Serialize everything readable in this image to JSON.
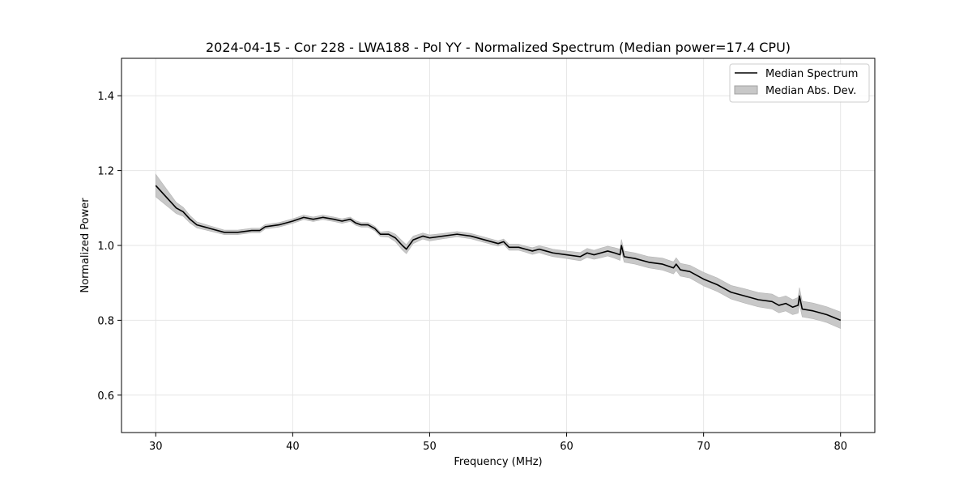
{
  "chart_data": {
    "type": "line",
    "title": "2024-04-15 - Cor 228 - LWA188 - Pol YY - Normalized Spectrum (Median power=17.4 CPU)",
    "xlabel": "Frequency (MHz)",
    "ylabel": "Normalized Power",
    "xlim": [
      27.5,
      82.5
    ],
    "ylim": [
      0.5,
      1.5
    ],
    "xticks": [
      30,
      40,
      50,
      60,
      70,
      80
    ],
    "yticks": [
      0.6,
      0.8,
      1.0,
      1.2,
      1.4
    ],
    "xtick_labels": [
      "30",
      "40",
      "50",
      "60",
      "70",
      "80"
    ],
    "ytick_labels": [
      "0.6",
      "0.8",
      "1.0",
      "1.2",
      "1.4"
    ],
    "grid": true,
    "legend_position": "top-right",
    "legend": [
      "Median Spectrum",
      "Median Abs. Dev."
    ],
    "series": [
      {
        "name": "Median Spectrum",
        "color": "#000000",
        "x": [
          30.0,
          30.5,
          31.0,
          31.5,
          32.0,
          32.5,
          33.0,
          34.0,
          35.0,
          36.0,
          37.0,
          37.6,
          38.0,
          39.0,
          40.0,
          40.8,
          41.5,
          42.2,
          43.0,
          43.6,
          44.2,
          44.6,
          45.0,
          45.5,
          46.0,
          46.4,
          47.0,
          47.5,
          48.0,
          48.3,
          48.8,
          49.5,
          50.0,
          51.0,
          52.0,
          53.0,
          54.0,
          55.0,
          55.4,
          55.8,
          56.5,
          57.0,
          57.5,
          58.0,
          58.5,
          59.0,
          60.0,
          61.0,
          61.5,
          62.0,
          62.5,
          63.0,
          63.5,
          63.9,
          64.0,
          64.2,
          65.0,
          66.0,
          67.0,
          67.8,
          68.0,
          68.3,
          69.0,
          70.0,
          71.0,
          72.0,
          73.0,
          74.0,
          75.0,
          75.5,
          76.0,
          76.5,
          76.9,
          77.0,
          77.2,
          78.0,
          79.0,
          80.0
        ],
        "y": [
          1.16,
          1.14,
          1.12,
          1.1,
          1.09,
          1.07,
          1.055,
          1.045,
          1.035,
          1.035,
          1.04,
          1.04,
          1.05,
          1.055,
          1.065,
          1.075,
          1.07,
          1.075,
          1.07,
          1.065,
          1.07,
          1.06,
          1.055,
          1.055,
          1.045,
          1.03,
          1.03,
          1.02,
          1.0,
          0.99,
          1.015,
          1.025,
          1.02,
          1.025,
          1.03,
          1.025,
          1.015,
          1.005,
          1.01,
          0.995,
          0.995,
          0.99,
          0.985,
          0.99,
          0.985,
          0.98,
          0.975,
          0.97,
          0.98,
          0.975,
          0.98,
          0.985,
          0.98,
          0.975,
          1.0,
          0.97,
          0.965,
          0.955,
          0.95,
          0.94,
          0.95,
          0.935,
          0.93,
          0.91,
          0.895,
          0.875,
          0.865,
          0.855,
          0.85,
          0.84,
          0.845,
          0.835,
          0.84,
          0.865,
          0.83,
          0.825,
          0.815,
          0.8
        ]
      },
      {
        "name": "Median Abs. Dev.",
        "color": "#c8c8c8",
        "band_halfwidth": [
          0.03,
          0.025,
          0.02,
          0.015,
          0.012,
          0.01,
          0.008,
          0.007,
          0.006,
          0.006,
          0.006,
          0.006,
          0.006,
          0.006,
          0.006,
          0.006,
          0.006,
          0.006,
          0.006,
          0.006,
          0.006,
          0.006,
          0.006,
          0.006,
          0.006,
          0.006,
          0.008,
          0.01,
          0.012,
          0.012,
          0.01,
          0.008,
          0.008,
          0.007,
          0.007,
          0.007,
          0.007,
          0.007,
          0.007,
          0.008,
          0.008,
          0.008,
          0.009,
          0.009,
          0.01,
          0.01,
          0.01,
          0.011,
          0.012,
          0.012,
          0.013,
          0.013,
          0.014,
          0.015,
          0.016,
          0.015,
          0.015,
          0.015,
          0.016,
          0.016,
          0.017,
          0.017,
          0.017,
          0.018,
          0.018,
          0.018,
          0.019,
          0.019,
          0.02,
          0.02,
          0.02,
          0.02,
          0.021,
          0.022,
          0.021,
          0.021,
          0.021,
          0.022
        ]
      }
    ]
  }
}
